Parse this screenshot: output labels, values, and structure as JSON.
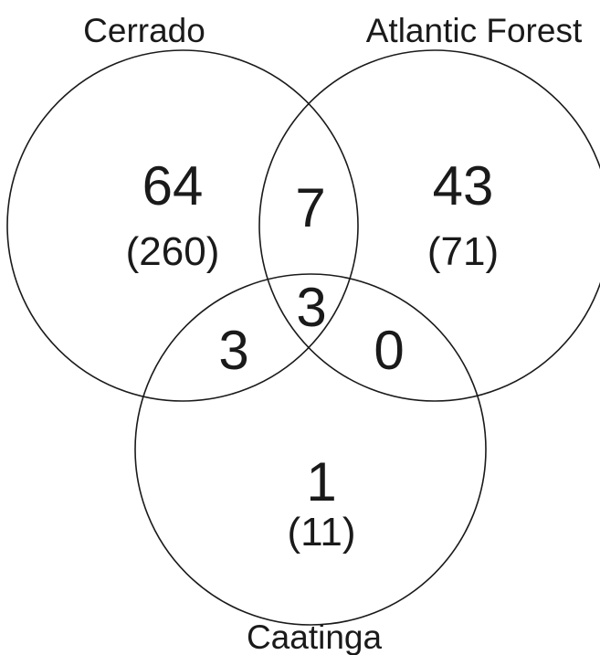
{
  "sets": {
    "cerrado": "Cerrado",
    "atlantic_forest": "Atlantic Forest",
    "caatinga": "Caatinga"
  },
  "regions": {
    "cerrado_only": {
      "count": "64",
      "sub": "(260)"
    },
    "atlantic_only": {
      "count": "43",
      "sub": "(71)"
    },
    "caatinga_only": {
      "count": "1",
      "sub": "(11)"
    },
    "cerrado_atlantic": {
      "count": "7"
    },
    "all_three": {
      "count": "3"
    },
    "cerrado_caatinga": {
      "count": "3"
    },
    "atlantic_caatinga": {
      "count": "0"
    }
  }
}
